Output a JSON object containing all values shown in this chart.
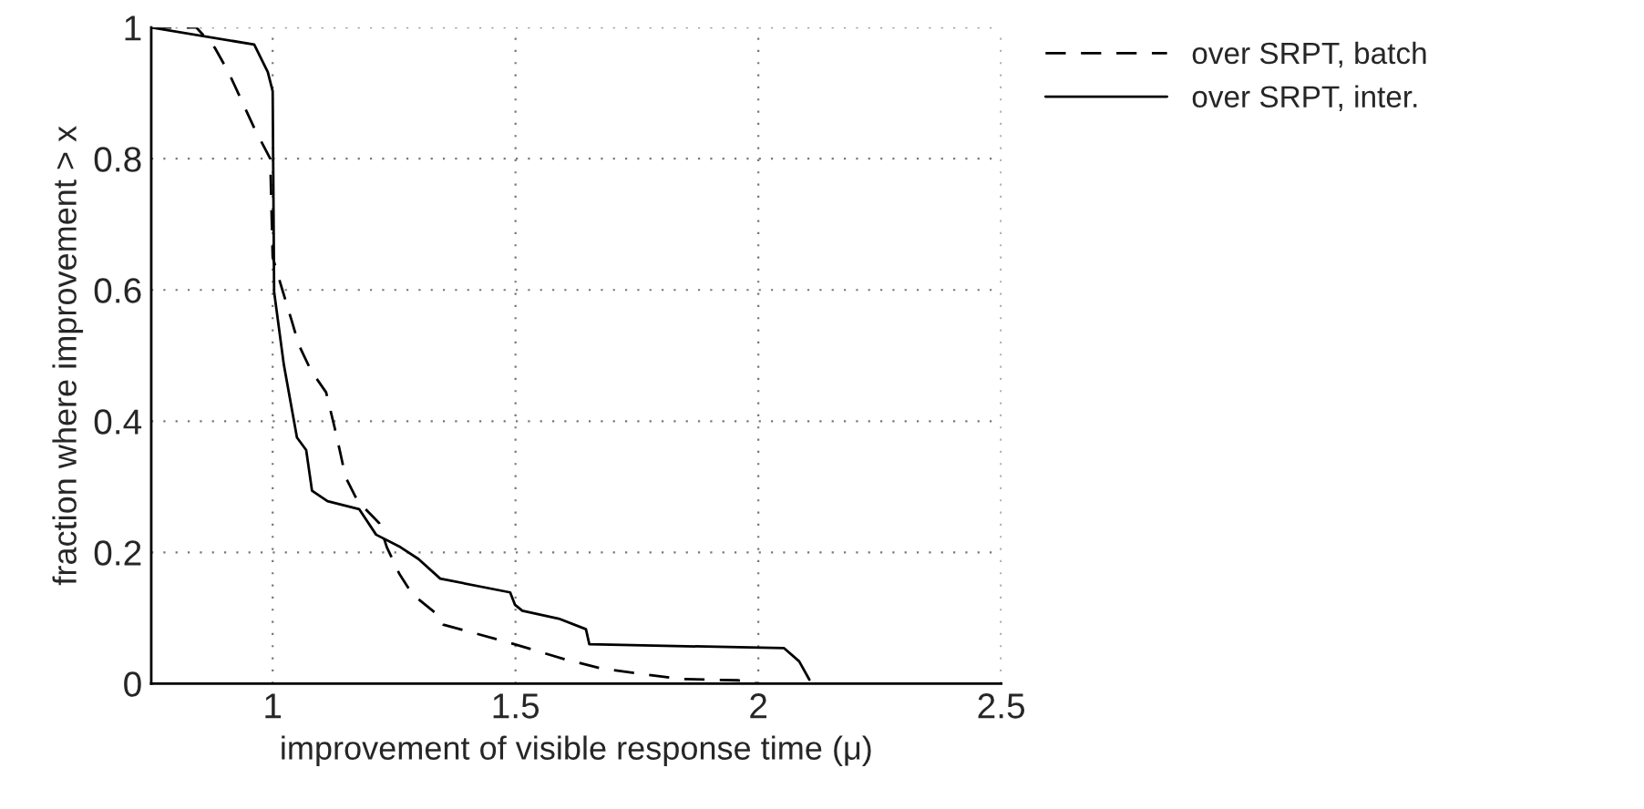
{
  "chart_data": {
    "type": "line",
    "xlabel": "improvement of visible response time (μ)",
    "ylabel": "fraction where improvement > x",
    "xlim": [
      0.75,
      2.5
    ],
    "xticks": [
      1,
      1.5,
      2,
      2.5
    ],
    "ylim": [
      0,
      1
    ],
    "yticks": [
      0,
      0.2,
      0.4,
      0.6,
      0.8,
      1
    ],
    "grid": true,
    "legend": "top right",
    "series": [
      {
        "name": "over SRPT, batch",
        "color": "#000000",
        "line_style": "dashed",
        "x": [
          0.75,
          0.843,
          0.881,
          0.909,
          0.962,
          0.995,
          1.0,
          1.02,
          1.038,
          1.054,
          1.079,
          1.11,
          1.128,
          1.138,
          1.15,
          1.175,
          1.219,
          1.235,
          1.261,
          1.288,
          1.338,
          1.351,
          1.489,
          1.602,
          1.677,
          1.839,
          1.959,
          2.0
        ],
        "values": [
          1.0,
          1.0,
          0.969,
          0.932,
          0.847,
          0.8,
          0.65,
          0.6,
          0.556,
          0.516,
          0.477,
          0.444,
          0.389,
          0.356,
          0.315,
          0.278,
          0.245,
          0.208,
          0.167,
          0.136,
          0.106,
          0.09,
          0.062,
          0.037,
          0.023,
          0.007,
          0.005,
          0.0
        ]
      },
      {
        "name": "over SRPT, inter.",
        "color": "#000000",
        "line_style": "solid",
        "x": [
          0.75,
          0.962,
          0.99,
          1.0,
          1.003,
          1.023,
          1.05,
          1.069,
          1.081,
          1.113,
          1.178,
          1.213,
          1.263,
          1.3,
          1.345,
          1.489,
          1.499,
          1.514,
          1.589,
          1.645,
          1.652,
          2.053,
          2.084,
          2.105
        ],
        "values": [
          1.0,
          0.974,
          0.932,
          0.903,
          0.597,
          0.486,
          0.375,
          0.356,
          0.294,
          0.278,
          0.266,
          0.227,
          0.208,
          0.19,
          0.16,
          0.139,
          0.12,
          0.111,
          0.099,
          0.083,
          0.06,
          0.054,
          0.034,
          0.006
        ]
      }
    ]
  }
}
